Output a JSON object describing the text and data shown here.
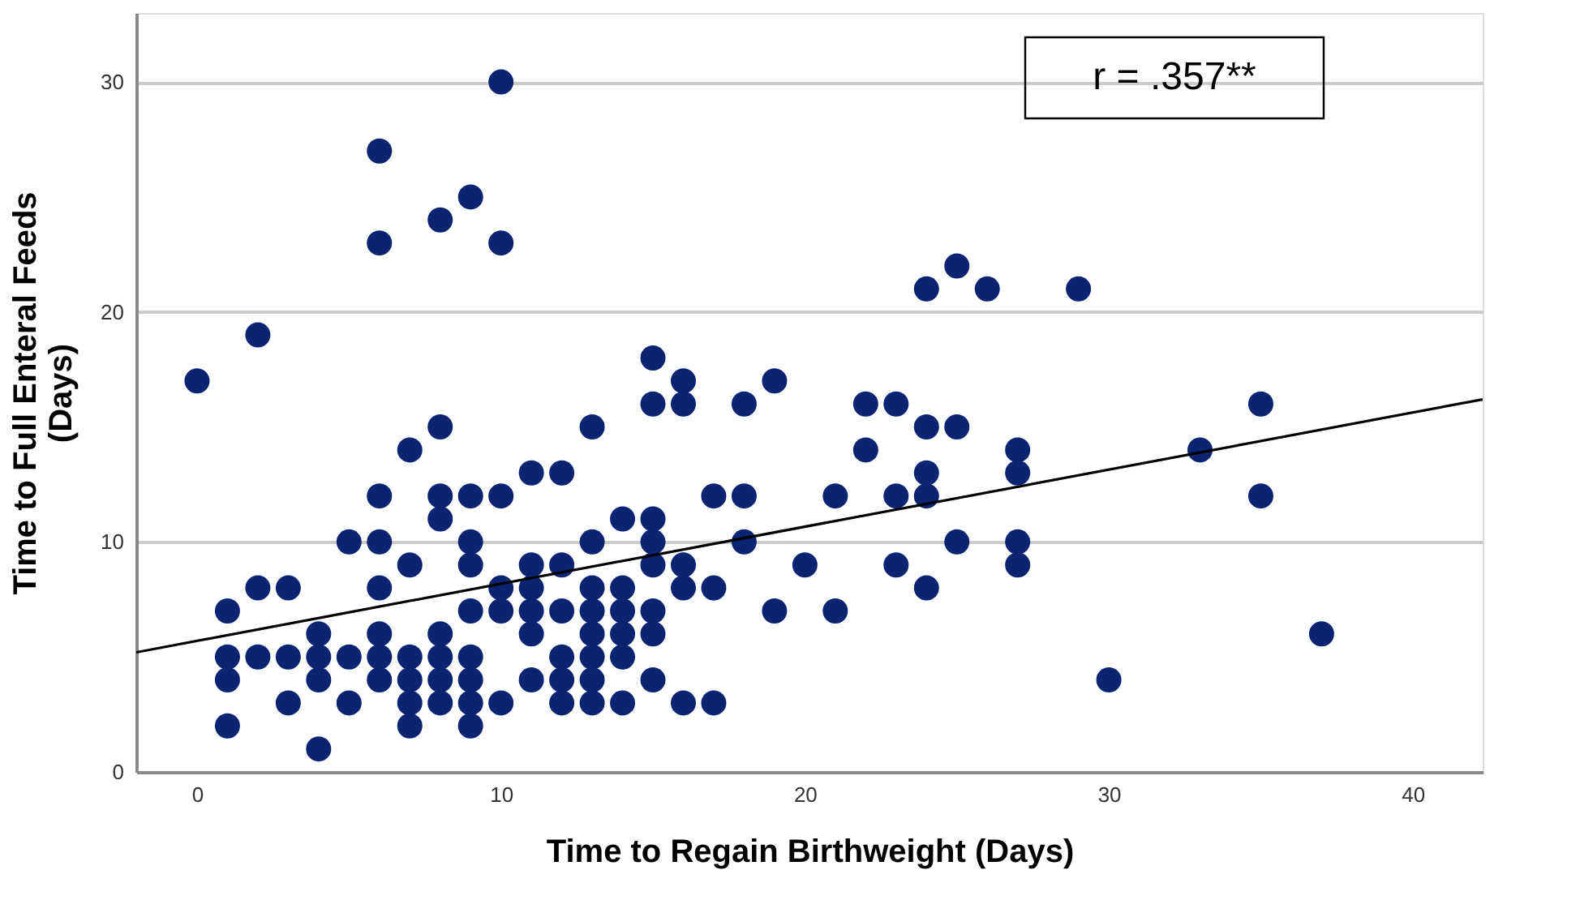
{
  "chart_data": {
    "type": "scatter",
    "xlabel": "Time to Regain Birthweight (Days)",
    "ylabel": "Time to Full Enteral Feeds\n(Days)",
    "annotations": [
      "r = .357**"
    ],
    "xlim": [
      -2,
      42.3
    ],
    "ylim": [
      0,
      33
    ],
    "xticks": [
      0,
      10,
      20,
      30,
      40
    ],
    "yticks": [
      0,
      10,
      20,
      30
    ],
    "grid": "y",
    "marker": "circle",
    "series": [
      {
        "color": "#0a2472",
        "x": [
          0,
          1,
          1,
          1,
          1,
          2,
          2,
          2,
          3,
          3,
          3,
          4,
          4,
          4,
          4,
          5,
          5,
          5,
          6,
          6,
          6,
          6,
          6,
          6,
          6,
          6,
          7,
          7,
          7,
          7,
          7,
          7,
          8,
          8,
          8,
          8,
          8,
          8,
          8,
          8,
          9,
          9,
          9,
          9,
          9,
          9,
          9,
          9,
          9,
          10,
          10,
          10,
          10,
          10,
          10,
          11,
          11,
          11,
          11,
          11,
          11,
          12,
          12,
          12,
          12,
          12,
          12,
          13,
          13,
          13,
          13,
          13,
          13,
          13,
          13,
          14,
          14,
          14,
          14,
          14,
          14,
          15,
          15,
          15,
          15,
          15,
          15,
          15,
          15,
          16,
          16,
          16,
          16,
          16,
          17,
          17,
          17,
          18,
          18,
          18,
          19,
          19,
          20,
          21,
          21,
          22,
          22,
          23,
          23,
          23,
          24,
          24,
          24,
          24,
          24,
          25,
          25,
          25,
          26,
          27,
          27,
          27,
          27,
          29,
          30,
          33,
          35,
          35,
          37
        ],
        "values": [
          17,
          7,
          5,
          4,
          2,
          19,
          8,
          5,
          8,
          5,
          3,
          6,
          5,
          4,
          1,
          10,
          5,
          3,
          27,
          23,
          12,
          10,
          8,
          6,
          5,
          4,
          14,
          9,
          5,
          4,
          3,
          2,
          24,
          15,
          12,
          11,
          6,
          5,
          4,
          3,
          25,
          12,
          10,
          9,
          7,
          5,
          4,
          3,
          2,
          30,
          23,
          12,
          8,
          7,
          3,
          13,
          9,
          8,
          7,
          6,
          4,
          13,
          9,
          7,
          5,
          4,
          3,
          15,
          10,
          8,
          7,
          6,
          5,
          4,
          3,
          11,
          8,
          7,
          6,
          5,
          3,
          18,
          16,
          11,
          10,
          9,
          7,
          6,
          4,
          17,
          16,
          9,
          8,
          3,
          12,
          8,
          3,
          16,
          12,
          10,
          17,
          7,
          9,
          12,
          7,
          16,
          14,
          16,
          12,
          9,
          21,
          15,
          13,
          12,
          8,
          22,
          15,
          10,
          21,
          14,
          13,
          10,
          9,
          21,
          4,
          14,
          16,
          12,
          6
        ]
      },
      {
        "type": "line",
        "color": "#000000",
        "marker": "none",
        "line_style": "solid",
        "x": [
          -2,
          42.3
        ],
        "values": [
          5.2,
          16.2
        ]
      }
    ]
  }
}
